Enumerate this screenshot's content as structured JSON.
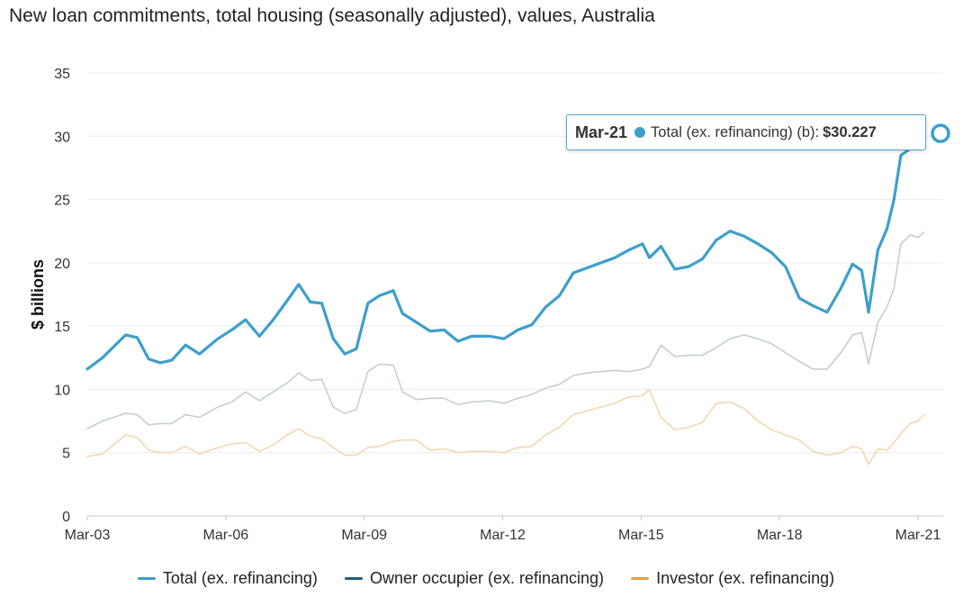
{
  "title": "New loan commitments, total housing (seasonally adjusted), values, Australia",
  "tooltip": {
    "date": "Mar-21",
    "series": "Total (ex. refinancing) (b):",
    "value": "$30.227",
    "color": "#3d9fcc"
  },
  "legend": [
    {
      "label": "Total (ex. refinancing)",
      "color": "#3d9fcc"
    },
    {
      "label": "Owner occupier (ex. refinancing)",
      "color": "#1f5f75"
    },
    {
      "label": "Investor (ex. refinancing)",
      "color": "#e0a24a"
    }
  ],
  "chart_data": {
    "type": "line",
    "ylabel": "$ billions",
    "ylim": [
      0,
      35
    ],
    "yticks": [
      0,
      5,
      10,
      15,
      20,
      25,
      30,
      35
    ],
    "xticks": [
      "Mar-03",
      "Mar-06",
      "Mar-09",
      "Mar-12",
      "Mar-15",
      "Mar-18",
      "Mar-21"
    ],
    "x": [
      2003.17,
      2003.5,
      2004.0,
      2004.25,
      2004.5,
      2004.75,
      2005.0,
      2005.3,
      2005.6,
      2006.0,
      2006.3,
      2006.6,
      2006.9,
      2007.2,
      2007.5,
      2007.75,
      2008.0,
      2008.25,
      2008.5,
      2008.75,
      2009.0,
      2009.25,
      2009.5,
      2009.8,
      2010.0,
      2010.3,
      2010.6,
      2010.9,
      2011.2,
      2011.5,
      2011.9,
      2012.2,
      2012.5,
      2012.8,
      2013.1,
      2013.4,
      2013.7,
      2014.0,
      2014.3,
      2014.6,
      2014.9,
      2015.2,
      2015.35,
      2015.6,
      2015.9,
      2016.2,
      2016.5,
      2016.8,
      2017.1,
      2017.4,
      2017.7,
      2018.0,
      2018.3,
      2018.6,
      2018.9,
      2019.2,
      2019.5,
      2019.75,
      2019.95,
      2020.1,
      2020.3,
      2020.5,
      2020.65,
      2020.8,
      2021.0,
      2021.17,
      2021.3
    ],
    "series": [
      {
        "name": "Total (ex. refinancing)",
        "values": [
          11.6,
          12.5,
          14.3,
          14.1,
          12.4,
          12.1,
          12.3,
          13.5,
          12.8,
          14.0,
          14.7,
          15.5,
          14.2,
          15.5,
          17.0,
          18.3,
          16.9,
          16.8,
          14.0,
          12.8,
          13.2,
          16.8,
          17.4,
          17.8,
          16.0,
          15.3,
          14.6,
          14.7,
          13.8,
          14.2,
          14.2,
          14.0,
          14.7,
          15.1,
          16.5,
          17.4,
          19.2,
          19.6,
          20.0,
          20.4,
          21.0,
          21.5,
          20.4,
          21.3,
          19.5,
          19.7,
          20.3,
          21.8,
          22.5,
          22.1,
          21.5,
          20.8,
          19.7,
          17.2,
          16.6,
          16.1,
          18.0,
          19.9,
          19.4,
          16.1,
          21.0,
          22.7,
          25.0,
          28.5,
          29.0,
          30.227,
          30.3
        ],
        "color": "#3d9fcc"
      },
      {
        "name": "Owner occupier (ex. refinancing)",
        "values": [
          6.9,
          7.5,
          8.1,
          8.0,
          7.2,
          7.3,
          7.3,
          8.0,
          7.8,
          8.6,
          9.0,
          9.8,
          9.1,
          9.8,
          10.5,
          11.3,
          10.7,
          10.8,
          8.6,
          8.1,
          8.4,
          11.4,
          12.0,
          11.9,
          9.8,
          9.2,
          9.3,
          9.3,
          8.8,
          9.0,
          9.1,
          8.9,
          9.3,
          9.6,
          10.1,
          10.4,
          11.1,
          11.3,
          11.4,
          11.5,
          11.4,
          11.6,
          11.8,
          13.5,
          12.6,
          12.7,
          12.7,
          13.3,
          14.0,
          14.3,
          14.0,
          13.6,
          12.9,
          12.2,
          11.6,
          11.6,
          12.9,
          14.3,
          14.5,
          12.0,
          15.3,
          16.5,
          18.0,
          21.5,
          22.2,
          22.0,
          22.4
        ],
        "color": "#c5ced2"
      },
      {
        "name": "Investor (ex. refinancing)",
        "values": [
          4.7,
          4.9,
          6.4,
          6.2,
          5.2,
          5.0,
          5.0,
          5.5,
          4.9,
          5.4,
          5.7,
          5.8,
          5.1,
          5.6,
          6.4,
          6.9,
          6.3,
          6.1,
          5.4,
          4.8,
          4.8,
          5.4,
          5.5,
          5.9,
          6.0,
          6.0,
          5.2,
          5.3,
          5.0,
          5.1,
          5.1,
          5.0,
          5.4,
          5.5,
          6.4,
          7.0,
          8.0,
          8.3,
          8.6,
          8.9,
          9.4,
          9.5,
          10.0,
          7.8,
          6.8,
          7.0,
          7.4,
          8.9,
          9.0,
          8.5,
          7.5,
          6.8,
          6.4,
          6.0,
          5.1,
          4.8,
          5.0,
          5.5,
          5.3,
          4.1,
          5.3,
          5.2,
          5.8,
          6.5,
          7.3,
          7.5,
          8.0
        ],
        "color": "#f2d8b2"
      }
    ]
  }
}
